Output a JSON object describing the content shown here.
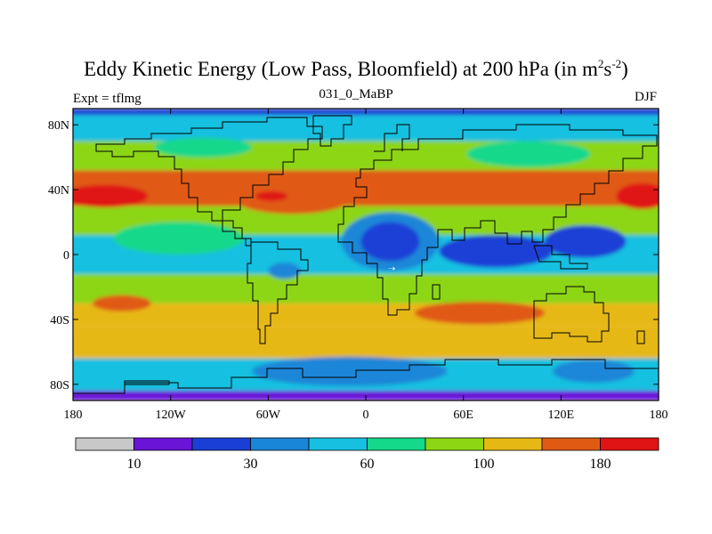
{
  "chart_data": {
    "type": "heatmap",
    "title_main": "Eddy Kinetic Energy (Low Pass, Bloomfield) at 200 hPa (in m",
    "title_sup1": "2",
    "title_mid": "s",
    "title_sup2": "-2",
    "title_close": ")",
    "left_label": "Expt = tflmg",
    "center_label": "031_0_MaBP",
    "right_label": "DJF",
    "x_tick_labels": [
      "180",
      "120W",
      "60W",
      "0",
      "60E",
      "120E",
      "180"
    ],
    "x_tick_values": [
      -180,
      -120,
      -60,
      0,
      60,
      120,
      180
    ],
    "y_tick_labels": [
      "80N",
      "40N",
      "0",
      "40S",
      "80S"
    ],
    "y_tick_values": [
      80,
      40,
      0,
      -40,
      -80
    ],
    "xlim": [
      -180,
      180
    ],
    "ylim": [
      -90,
      90
    ],
    "colorbar": {
      "colors": [
        "#c8c8c8",
        "#6a14d8",
        "#1a3fd6",
        "#1a86d8",
        "#17c0e0",
        "#14d88a",
        "#8cd614",
        "#e6b814",
        "#e05a14",
        "#e01414"
      ],
      "label_texts": [
        "10",
        "30",
        "60",
        "100",
        "180"
      ],
      "label_after_index": [
        1,
        3,
        5,
        7,
        9
      ]
    },
    "bands": [
      {
        "name": "south-pole",
        "level": 1,
        "lat": [
          -90,
          -84
        ]
      },
      {
        "name": "south-high-lat",
        "level": 4,
        "lat": [
          -84,
          -64
        ]
      },
      {
        "name": "southern-midlat",
        "level": 7,
        "lat": [
          -64,
          -44
        ]
      },
      {
        "name": "southern-jet",
        "level": 7,
        "lat": [
          -44,
          -30
        ]
      },
      {
        "name": "southern-subtropics",
        "level": 6,
        "lat": [
          -30,
          -12
        ]
      },
      {
        "name": "tropics",
        "level": 4,
        "lat": [
          -12,
          12
        ]
      },
      {
        "name": "northern-subtropics",
        "level": 6,
        "lat": [
          12,
          30
        ]
      },
      {
        "name": "northern-jet",
        "level": 8,
        "lat": [
          30,
          52
        ]
      },
      {
        "name": "northern-midlat",
        "level": 6,
        "lat": [
          52,
          70
        ]
      },
      {
        "name": "arctic",
        "level": 4,
        "lat": [
          70,
          86
        ]
      },
      {
        "name": "north-pole",
        "level": 2,
        "lat": [
          86,
          90
        ]
      }
    ],
    "blobs": [
      {
        "lon": -160,
        "lat": 36,
        "rlon": 26,
        "rlat": 7,
        "level": 9
      },
      {
        "lon": -45,
        "lat": 34,
        "rlon": 35,
        "rlat": 9,
        "level": 8
      },
      {
        "lon": -58,
        "lat": 36,
        "rlon": 10,
        "rlat": 3,
        "level": 9
      },
      {
        "lon": 15,
        "lat": 38,
        "rlon": 40,
        "rlat": 6,
        "level": 8
      },
      {
        "lon": 98,
        "lat": 36,
        "rlon": 28,
        "rlat": 5,
        "level": 8
      },
      {
        "lon": 170,
        "lat": 36,
        "rlon": 16,
        "rlat": 8,
        "level": 9
      },
      {
        "lon": 15,
        "lat": 8,
        "rlon": 30,
        "rlat": 18,
        "level": 3
      },
      {
        "lon": 15,
        "lat": 8,
        "rlon": 18,
        "rlat": 12,
        "level": 2
      },
      {
        "lon": 80,
        "lat": 2,
        "rlon": 35,
        "rlat": 10,
        "level": 2
      },
      {
        "lon": 135,
        "lat": 8,
        "rlon": 25,
        "rlat": 10,
        "level": 2
      },
      {
        "lon": -115,
        "lat": 10,
        "rlon": 40,
        "rlat": 10,
        "level": 5
      },
      {
        "lon": -50,
        "lat": -10,
        "rlon": 10,
        "rlat": 5,
        "level": 3
      },
      {
        "lon": -150,
        "lat": -30,
        "rlon": 18,
        "rlat": 5,
        "level": 8
      },
      {
        "lon": 70,
        "lat": -36,
        "rlon": 40,
        "rlat": 7,
        "level": 8
      },
      {
        "lon": -10,
        "lat": -72,
        "rlon": 60,
        "rlat": 9,
        "level": 3
      },
      {
        "lon": 140,
        "lat": -72,
        "rlon": 25,
        "rlat": 7,
        "level": 3
      },
      {
        "lon": 100,
        "lat": 62,
        "rlon": 38,
        "rlat": 8,
        "level": 5
      },
      {
        "lon": -100,
        "lat": 66,
        "rlon": 30,
        "rlat": 6,
        "level": 5
      }
    ]
  }
}
